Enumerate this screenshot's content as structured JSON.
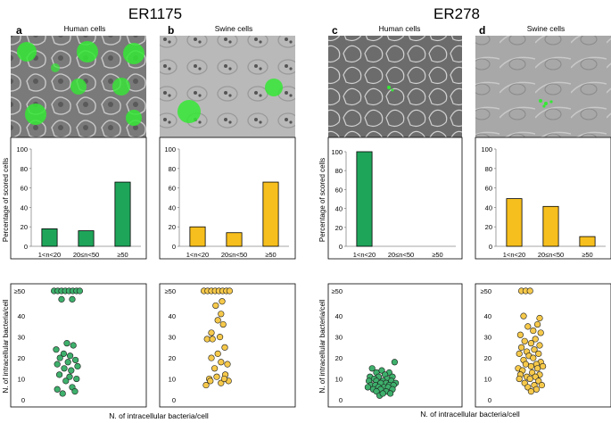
{
  "figure": {
    "strains": [
      "ER1175",
      "ER278"
    ],
    "bottom_label_left": "N. of intracellular bacteria/cell",
    "bottom_label_right": "N. of intracellular bacteria/cell"
  },
  "colors": {
    "green": "#1fa55a",
    "yellow": "#f7bf1d",
    "green_point": "#3eb06c",
    "yellow_point": "#f6c94b",
    "stroke": "#000000"
  },
  "panels": [
    {
      "letter": "a",
      "title": "Human cells",
      "strain": "ER1175",
      "color": "green"
    },
    {
      "letter": "b",
      "title": "Swine cells",
      "strain": "ER1175",
      "color": "yellow"
    },
    {
      "letter": "c",
      "title": "Human cells",
      "strain": "ER278",
      "color": "green"
    },
    {
      "letter": "d",
      "title": "Swine cells",
      "strain": "ER278",
      "color": "yellow"
    }
  ],
  "chart_data": [
    {
      "type": "bar",
      "panel": "a",
      "categories": [
        "1<n<20",
        "20≤n<50",
        "≥50"
      ],
      "values": [
        18,
        16,
        66
      ],
      "ylim": [
        0,
        100
      ],
      "yticks": [
        "0",
        "20",
        "40",
        "60",
        "80",
        "100"
      ],
      "ylabel": "Percentage of scored cells"
    },
    {
      "type": "bar",
      "panel": "b",
      "categories": [
        "1<n<20",
        "20≤n<50",
        "≥50"
      ],
      "values": [
        20,
        14,
        66
      ],
      "ylim": [
        0,
        100
      ],
      "yticks": [
        "0",
        "20",
        "40",
        "60",
        "80",
        "100"
      ],
      "ylabel": ""
    },
    {
      "type": "bar",
      "panel": "c",
      "categories": [
        "1<n<20",
        "20≤n<50",
        "≥50"
      ],
      "values": [
        100,
        0,
        0
      ],
      "ylim": [
        0,
        100
      ],
      "yticks": [
        "0",
        "20",
        "40",
        "60",
        "80",
        "100"
      ],
      "ylabel": "Percentage of scored cells"
    },
    {
      "type": "bar",
      "panel": "d",
      "categories": [
        "1<n<20",
        "20≤n<50",
        "≥50"
      ],
      "values": [
        49,
        41,
        10
      ],
      "ylim": [
        0,
        100
      ],
      "yticks": [
        "0",
        "20",
        "40",
        "60",
        "80",
        "100"
      ],
      "ylabel": ""
    },
    {
      "type": "scatter",
      "panel": "a",
      "ylim": [
        0,
        52
      ],
      "yticks": [
        "0",
        "10",
        "20",
        "30",
        "40",
        "≥50"
      ],
      "ylabel": "N. of intracellular bacteria/cell",
      "points": [
        [
          -0.24,
          52
        ],
        [
          -0.17,
          52
        ],
        [
          -0.1,
          52
        ],
        [
          -0.03,
          52
        ],
        [
          0.04,
          52
        ],
        [
          0.11,
          52
        ],
        [
          0.18,
          52
        ],
        [
          0.24,
          52
        ],
        [
          -0.1,
          48
        ],
        [
          0.1,
          48
        ],
        [
          0.0,
          27
        ],
        [
          -0.2,
          24
        ],
        [
          0.12,
          26
        ],
        [
          -0.06,
          22
        ],
        [
          0.06,
          21
        ],
        [
          -0.13,
          20
        ],
        [
          0.16,
          19
        ],
        [
          0.02,
          18
        ],
        [
          -0.18,
          17
        ],
        [
          0.2,
          16
        ],
        [
          -0.05,
          15
        ],
        [
          0.08,
          14
        ],
        [
          -0.14,
          12
        ],
        [
          0.05,
          11
        ],
        [
          0.18,
          10
        ],
        [
          -0.02,
          9
        ],
        [
          0.1,
          6
        ],
        [
          -0.18,
          5
        ],
        [
          0.15,
          4
        ],
        [
          -0.08,
          3
        ]
      ]
    },
    {
      "type": "scatter",
      "panel": "b",
      "ylim": [
        0,
        52
      ],
      "yticks": [
        "0",
        "10",
        "20",
        "30",
        "40",
        "≥50"
      ],
      "ylabel": "",
      "points": [
        [
          -0.24,
          52
        ],
        [
          -0.17,
          52
        ],
        [
          -0.1,
          52
        ],
        [
          -0.03,
          52
        ],
        [
          0.04,
          52
        ],
        [
          0.11,
          52
        ],
        [
          0.18,
          52
        ],
        [
          0.24,
          52
        ],
        [
          0.1,
          47
        ],
        [
          -0.02,
          45
        ],
        [
          0.08,
          41
        ],
        [
          0.02,
          38
        ],
        [
          0.12,
          36
        ],
        [
          -0.1,
          32
        ],
        [
          0.06,
          30
        ],
        [
          -0.18,
          29
        ],
        [
          -0.08,
          29
        ],
        [
          0.15,
          25
        ],
        [
          0.02,
          22
        ],
        [
          -0.1,
          20
        ],
        [
          0.08,
          18
        ],
        [
          0.2,
          17
        ],
        [
          -0.04,
          15
        ],
        [
          0.16,
          12
        ],
        [
          0.0,
          11
        ],
        [
          -0.14,
          10
        ],
        [
          0.22,
          9
        ],
        [
          0.08,
          8
        ],
        [
          -0.2,
          7
        ],
        [
          -0.12,
          9
        ],
        [
          0.14,
          10
        ]
      ]
    },
    {
      "type": "scatter",
      "panel": "c",
      "ylim": [
        0,
        52
      ],
      "yticks": [
        "0",
        "10",
        "20",
        "30",
        "40",
        "≥50"
      ],
      "ylabel": "N. of intracellular bacteria/cell",
      "points": [
        [
          0.24,
          18
        ],
        [
          -0.18,
          15
        ],
        [
          0.0,
          14
        ],
        [
          -0.1,
          13
        ],
        [
          0.14,
          13
        ],
        [
          0.06,
          12
        ],
        [
          -0.22,
          11
        ],
        [
          -0.06,
          11
        ],
        [
          0.2,
          11
        ],
        [
          0.1,
          10
        ],
        [
          -0.14,
          10
        ],
        [
          0.02,
          9
        ],
        [
          -0.24,
          9
        ],
        [
          -0.1,
          9
        ],
        [
          0.18,
          9
        ],
        [
          0.26,
          8
        ],
        [
          0.08,
          8
        ],
        [
          -0.02,
          8
        ],
        [
          -0.2,
          7
        ],
        [
          -0.12,
          7
        ],
        [
          0.14,
          7
        ],
        [
          0.22,
          7
        ],
        [
          -0.26,
          6
        ],
        [
          -0.06,
          6
        ],
        [
          0.04,
          6
        ],
        [
          0.12,
          6
        ],
        [
          -0.16,
          5
        ],
        [
          -0.02,
          5
        ],
        [
          0.2,
          5
        ],
        [
          0.08,
          4
        ],
        [
          -0.1,
          4
        ],
        [
          0.16,
          3
        ],
        [
          -0.04,
          2
        ],
        [
          0.02,
          3
        ]
      ]
    },
    {
      "type": "scatter",
      "panel": "d",
      "ylim": [
        0,
        52
      ],
      "yticks": [
        "0",
        "10",
        "20",
        "30",
        "40",
        "≥50"
      ],
      "ylabel": "",
      "points": [
        [
          -0.14,
          52
        ],
        [
          -0.06,
          52
        ],
        [
          0.02,
          52
        ],
        [
          0.2,
          39
        ],
        [
          -0.1,
          40
        ],
        [
          0.16,
          36
        ],
        [
          -0.02,
          35
        ],
        [
          0.08,
          33
        ],
        [
          0.22,
          32
        ],
        [
          -0.16,
          31
        ],
        [
          0.12,
          29
        ],
        [
          -0.08,
          28
        ],
        [
          0.04,
          27
        ],
        [
          0.2,
          26
        ],
        [
          -0.14,
          25
        ],
        [
          0.1,
          24
        ],
        [
          -0.04,
          23
        ],
        [
          0.18,
          22
        ],
        [
          -0.18,
          22
        ],
        [
          0.0,
          21
        ],
        [
          0.08,
          20
        ],
        [
          -0.1,
          19
        ],
        [
          0.22,
          18
        ],
        [
          0.14,
          17
        ],
        [
          -0.06,
          17
        ],
        [
          0.26,
          16
        ],
        [
          0.04,
          16
        ],
        [
          -0.2,
          15
        ],
        [
          0.16,
          15
        ],
        [
          -0.12,
          14
        ],
        [
          0.06,
          13
        ],
        [
          0.2,
          12
        ],
        [
          -0.16,
          12
        ],
        [
          -0.04,
          11
        ],
        [
          0.12,
          11
        ],
        [
          -0.18,
          10
        ],
        [
          0.02,
          10
        ],
        [
          0.18,
          9
        ],
        [
          -0.08,
          8
        ],
        [
          0.1,
          7
        ],
        [
          0.24,
          7
        ],
        [
          -0.02,
          6
        ],
        [
          0.14,
          5
        ],
        [
          0.04,
          4
        ]
      ]
    }
  ]
}
